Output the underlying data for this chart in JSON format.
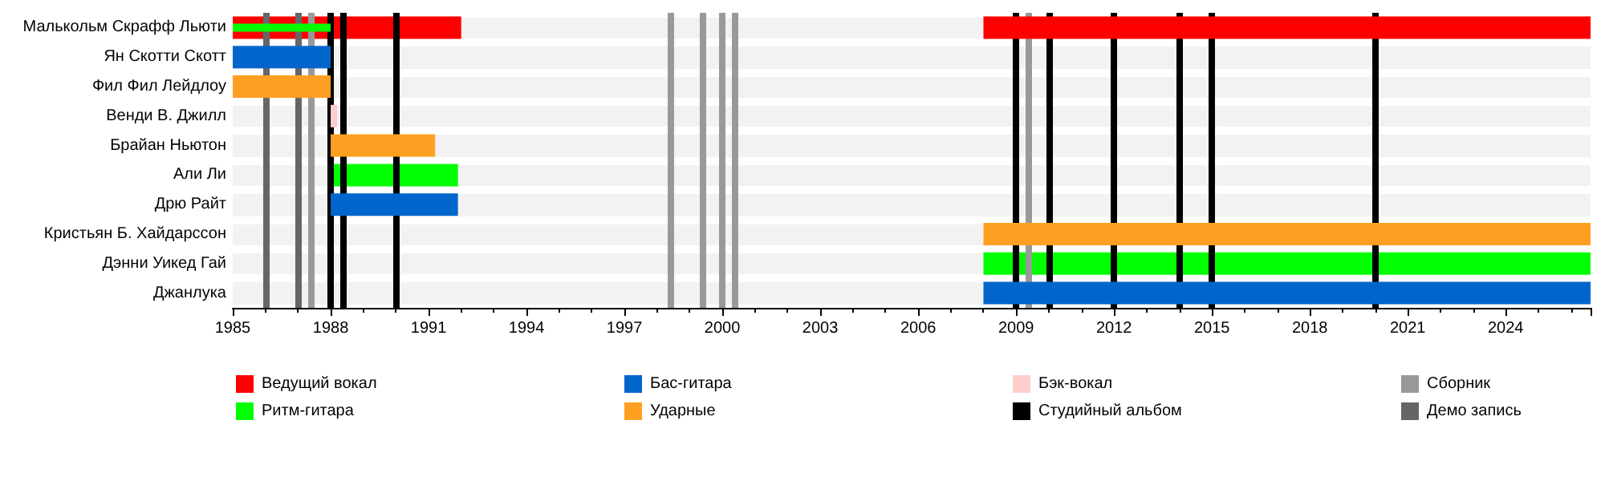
{
  "chart_data": {
    "type": "bar",
    "orientation": "horizontal",
    "grid": false,
    "legend": "bottom",
    "categories": [
      "Малькольм Скрафф Льюти",
      "Ян Скотти Скотт",
      "Фил Фил Лейдлоу",
      "Венди В. Джилл",
      "Брайан Ньютон",
      "Али Ли",
      "Дрю Райт",
      "Кристьян Б. Хайдарссон",
      "Дэнни Уикед Гай",
      "Джанлука"
    ],
    "xlim": [
      1985,
      2026.6
    ],
    "xticks": [
      1985,
      1988,
      1991,
      1994,
      1997,
      2000,
      2003,
      2006,
      2009,
      2012,
      2015,
      2018,
      2021,
      2024
    ],
    "series": [
      {
        "name": "Ведущий вокал",
        "color": "#ff0000",
        "base": [
          1985,
          null,
          null,
          null,
          null,
          null,
          null,
          null,
          null,
          null
        ],
        "values": [
          7,
          null,
          null,
          null,
          null,
          null,
          null,
          null,
          null,
          null
        ]
      },
      {
        "name": "Ритм-гитара",
        "color": "#00ff00",
        "base": [
          null,
          null,
          null,
          null,
          null,
          1988,
          null,
          null,
          2008,
          null
        ],
        "values": [
          null,
          null,
          null,
          null,
          null,
          3.9,
          null,
          null,
          18.6,
          null
        ]
      },
      {
        "name": "Бас-гитара",
        "color": "#0066cc",
        "base": [
          null,
          1985,
          null,
          null,
          null,
          null,
          1988,
          null,
          null,
          2008
        ],
        "values": [
          null,
          3,
          null,
          null,
          null,
          null,
          3.9,
          null,
          null,
          18.6
        ]
      },
      {
        "name": "Ударные",
        "color": "#ff9f22",
        "base": [
          null,
          null,
          1985,
          null,
          1988,
          null,
          null,
          2008,
          null,
          null
        ],
        "values": [
          null,
          null,
          3,
          null,
          3.2,
          null,
          null,
          18.6,
          null,
          null
        ]
      },
      {
        "name": "Бэк-вокал",
        "color": "#ffcccc",
        "base": [
          null,
          null,
          null,
          1988,
          null,
          null,
          null,
          null,
          null,
          null
        ],
        "values": [
          null,
          null,
          null,
          0.2,
          null,
          null,
          null,
          null,
          null,
          null
        ]
      },
      {
        "color": "#ff0000",
        "base": [
          2008,
          null,
          null,
          null,
          null,
          null,
          null,
          null,
          null,
          null
        ],
        "values": [
          18.6,
          null,
          null,
          null,
          null,
          null,
          null,
          null,
          null,
          null
        ]
      },
      {
        "color": "#00ff00",
        "base": [
          1985,
          null,
          null,
          null,
          null,
          null,
          null,
          null,
          null,
          null
        ],
        "values": [
          3,
          null,
          null,
          null,
          null,
          null,
          null,
          null,
          null,
          null
        ]
      }
    ],
    "ref_lines": [
      {
        "axis": "x",
        "value": 1988,
        "label": "Студийный альбом",
        "color": "#000000"
      },
      {
        "axis": "x",
        "value": 1988.4,
        "color": "#000000"
      },
      {
        "axis": "x",
        "value": 1990,
        "color": "#000000"
      },
      {
        "axis": "x",
        "value": 2009,
        "color": "#000000"
      },
      {
        "axis": "x",
        "value": 2010,
        "color": "#000000"
      },
      {
        "axis": "x",
        "value": 2012,
        "color": "#000000"
      },
      {
        "axis": "x",
        "value": 2014,
        "color": "#000000"
      },
      {
        "axis": "x",
        "value": 2015,
        "color": "#000000"
      },
      {
        "axis": "x",
        "value": 2020,
        "color": "#000000"
      },
      {
        "axis": "x",
        "value": 1987.4,
        "label": "Сборник",
        "color": "#999999"
      },
      {
        "axis": "x",
        "value": 1998.4,
        "color": "#999999"
      },
      {
        "axis": "x",
        "value": 1999.4,
        "color": "#999999"
      },
      {
        "axis": "x",
        "value": 2000,
        "color": "#999999"
      },
      {
        "axis": "x",
        "value": 2000.4,
        "color": "#999999"
      },
      {
        "axis": "x",
        "value": 2009.4,
        "color": "#999999"
      },
      {
        "axis": "x",
        "value": 1986,
        "label": "Демо запись",
        "color": "#666666"
      },
      {
        "axis": "x",
        "value": 1987,
        "color": "#666666"
      }
    ]
  }
}
